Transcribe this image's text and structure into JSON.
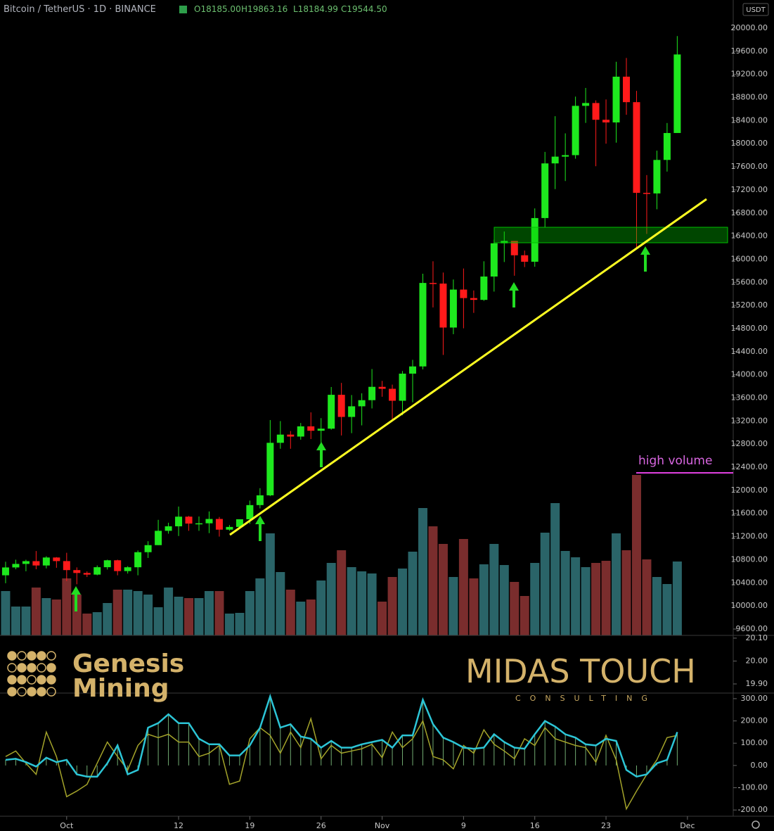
{
  "header": {
    "symbol": "Bitcoin / TetherUS · 1D · BINANCE",
    "ohlc": [
      "O18185.00",
      "H19863.16",
      "L18184.99",
      "C19544.50"
    ],
    "currency": "USDT"
  },
  "annotations": {
    "high_volume": "high volume"
  },
  "logos": {
    "genesis": [
      "Genesis",
      "Mining"
    ],
    "midas": "MIDAS TOUCH",
    "midas_sub": "CONSULTING"
  },
  "chart_data": [
    {
      "type": "candlestick",
      "open": [
        10530,
        10666,
        10727,
        10775,
        10700,
        10838,
        10776,
        10620,
        10570,
        10542,
        10670,
        10790,
        10603,
        10669,
        10930,
        11052,
        11300,
        11378,
        11545,
        11425,
        11430,
        11505,
        11320,
        11367,
        11500,
        11745,
        11914,
        12823,
        12965,
        12931,
        13108,
        13032,
        13068,
        13654,
        13271,
        13455,
        13561,
        13792,
        13758,
        13551,
        14020,
        14145,
        15590,
        15579,
        14818,
        15475,
        15328,
        15297,
        15701,
        16276,
        16317,
        16069,
        15957,
        16713,
        17659,
        17776,
        17802,
        18655,
        18704,
        18414,
        18368,
        19160,
        18719,
        17149,
        17139,
        17719,
        18185
      ],
      "high": [
        10765,
        10800,
        10799,
        10950,
        10860,
        10845,
        10920,
        10667,
        10598,
        10700,
        10800,
        10800,
        10688,
        10960,
        11120,
        11490,
        11440,
        11720,
        11557,
        11548,
        11635,
        11540,
        11400,
        11494,
        11823,
        12038,
        13217,
        13199,
        13027,
        13166,
        13350,
        13250,
        13789,
        13860,
        13650,
        13680,
        14100,
        13895,
        13830,
        14066,
        14259,
        15750,
        15965,
        15770,
        15650,
        15840,
        15460,
        15965,
        16340,
        16480,
        16317,
        16150,
        16880,
        17858,
        18476,
        18179,
        18815,
        18965,
        18750,
        18766,
        19418,
        19484,
        18915,
        17457,
        17880,
        18358,
        19863.16
      ],
      "low": [
        10393,
        10634,
        10600,
        10635,
        10650,
        10660,
        10430,
        10375,
        10500,
        10530,
        10630,
        10530,
        10560,
        10530,
        10830,
        11052,
        11250,
        11210,
        11300,
        11300,
        11260,
        11200,
        11300,
        11350,
        11420,
        11688,
        11900,
        12720,
        12720,
        12877,
        12888,
        12800,
        13050,
        12950,
        12990,
        13125,
        13418,
        13620,
        13220,
        13300,
        13525,
        14094,
        15166,
        14344,
        14703,
        14805,
        15072,
        15280,
        15440,
        15952,
        15715,
        15865,
        15870,
        16555,
        17214,
        17354,
        17740,
        18360,
        17610,
        18000,
        18018,
        18500,
        16188,
        16438,
        16865,
        17517,
        18184.99
      ],
      "close": [
        10666,
        10727,
        10775,
        10700,
        10838,
        10776,
        10620,
        10570,
        10542,
        10670,
        10790,
        10603,
        10669,
        10930,
        11052,
        11300,
        11378,
        11545,
        11425,
        11430,
        11505,
        11320,
        11367,
        11500,
        11745,
        11914,
        12823,
        12965,
        12931,
        13108,
        13032,
        13068,
        13654,
        13271,
        13455,
        13561,
        13792,
        13758,
        13551,
        14020,
        14145,
        15590,
        15579,
        14818,
        15475,
        15328,
        15297,
        15701,
        16276,
        16317,
        16069,
        15957,
        16713,
        17659,
        17776,
        17802,
        18655,
        18704,
        18414,
        18368,
        19160,
        18719,
        17149,
        17139,
        17719,
        18185,
        19544.5
      ],
      "up_color": "#1ee81e",
      "down_color": "#ff1a1a",
      "ylim": [
        9490,
        20487
      ],
      "yticks": [
        {
          "value": 9600,
          "label": "9600.00"
        },
        {
          "value": 10000,
          "label": "10000.00"
        },
        {
          "value": 10400,
          "label": "10400.00"
        },
        {
          "value": 10800,
          "label": "10800.00"
        },
        {
          "value": 11200,
          "label": "11200.00"
        },
        {
          "value": 11600,
          "label": "11600.00"
        },
        {
          "value": 12000,
          "label": "12000.00"
        },
        {
          "value": 12400,
          "label": "12400.00"
        },
        {
          "value": 12800,
          "label": "12800.00"
        },
        {
          "value": 13200,
          "label": "13200.00"
        },
        {
          "value": 13600,
          "label": "13600.00"
        },
        {
          "value": 14000,
          "label": "14000.00"
        },
        {
          "value": 14400,
          "label": "14400.00"
        },
        {
          "value": 14800,
          "label": "14800.00"
        },
        {
          "value": 15200,
          "label": "15200.00"
        },
        {
          "value": 15600,
          "label": "15600.00"
        },
        {
          "value": 16000,
          "label": "16000.00"
        },
        {
          "value": 16400,
          "label": "16400.00"
        },
        {
          "value": 16800,
          "label": "16800.00"
        },
        {
          "value": 17200,
          "label": "17200.00"
        },
        {
          "value": 17600,
          "label": "17600.00"
        },
        {
          "value": 18000,
          "label": "18000.00"
        },
        {
          "value": 18400,
          "label": "18400.00"
        },
        {
          "value": 18800,
          "label": "18800.00"
        },
        {
          "value": 19200,
          "label": "19200.00"
        },
        {
          "value": 19600,
          "label": "19600.00"
        },
        {
          "value": 20000,
          "label": "20000.00"
        }
      ],
      "xlim": [
        -0.55,
        71.5
      ],
      "xticks": [
        {
          "value": 6,
          "label": "Oct"
        },
        {
          "value": 17,
          "label": "12"
        },
        {
          "value": 24,
          "label": "19"
        },
        {
          "value": 31,
          "label": "26"
        },
        {
          "value": 37,
          "label": "Nov"
        },
        {
          "value": 45,
          "label": "9"
        },
        {
          "value": 52,
          "label": "16"
        },
        {
          "value": 59,
          "label": "23"
        },
        {
          "value": 67,
          "label": "Dec"
        }
      ],
      "volume": {
        "values": [
          63,
          41,
          41,
          68,
          53,
          51,
          81,
          58,
          31,
          33,
          46,
          65,
          65,
          63,
          58,
          40,
          68,
          55,
          53,
          53,
          63,
          63,
          31,
          32,
          63,
          81,
          145,
          90,
          65,
          48,
          51,
          78,
          103,
          121,
          97,
          91,
          88,
          48,
          83,
          95,
          119,
          181,
          155,
          130,
          83,
          137,
          81,
          101,
          130,
          100,
          76,
          56,
          103,
          146,
          188,
          120,
          111,
          97,
          103,
          106,
          145,
          121,
          228,
          108,
          83,
          73,
          105
        ],
        "ylim": [
          0,
          400
        ],
        "up_color": "#2a6468",
        "down_color": "#7a2d2d"
      }
    },
    {
      "type": "line",
      "ylim": [
        19.86,
        20.112
      ],
      "yticks": [
        {
          "value": 20.1,
          "label": "20.10"
        },
        {
          "value": 20,
          "label": "20.00"
        },
        {
          "value": 19.9,
          "label": "19.90"
        }
      ]
    },
    {
      "type": "line",
      "ylim": [
        -228,
        325
      ],
      "yticks": [
        {
          "value": 300,
          "label": "300.00"
        },
        {
          "value": 200,
          "label": "200.00"
        },
        {
          "value": 100,
          "label": "100.00"
        },
        {
          "value": 0,
          "label": "0.00"
        },
        {
          "value": -100,
          "label": "-100.00"
        },
        {
          "value": -200,
          "label": "-200.00"
        }
      ],
      "histogram_color": "#8fd88f",
      "series": [
        {
          "color": "#2cc5d6",
          "values": [
            25,
            30,
            15,
            -5,
            35,
            15,
            25,
            -40,
            -50,
            -50,
            10,
            90,
            -40,
            -20,
            170,
            190,
            230,
            190,
            190,
            120,
            95,
            95,
            45,
            45,
            90,
            170,
            310,
            170,
            185,
            130,
            120,
            80,
            110,
            80,
            80,
            95,
            105,
            115,
            80,
            135,
            135,
            295,
            185,
            125,
            105,
            80,
            75,
            80,
            140,
            105,
            80,
            75,
            140,
            200,
            175,
            140,
            125,
            95,
            90,
            120,
            110,
            -20,
            -50,
            -40,
            10,
            25,
            150
          ]
        },
        {
          "color": "#a3a32a",
          "values": [
            40,
            65,
            10,
            -40,
            150,
            40,
            -140,
            -115,
            -85,
            10,
            105,
            40,
            -20,
            90,
            140,
            125,
            140,
            105,
            105,
            40,
            55,
            90,
            -85,
            -70,
            120,
            170,
            135,
            55,
            150,
            80,
            210,
            30,
            90,
            55,
            65,
            75,
            95,
            35,
            150,
            80,
            120,
            200,
            40,
            25,
            -15,
            90,
            55,
            160,
            95,
            65,
            30,
            120,
            90,
            170,
            120,
            105,
            90,
            80,
            15,
            135,
            25,
            -195,
            -115,
            -40,
            25,
            125,
            135
          ]
        }
      ]
    }
  ]
}
